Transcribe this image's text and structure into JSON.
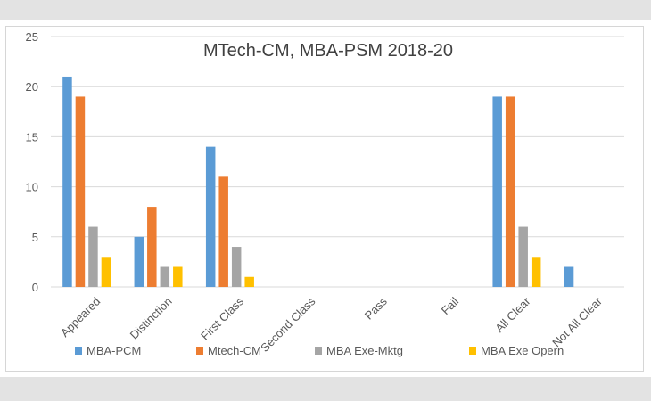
{
  "chart_data": {
    "type": "bar",
    "title": "MTech-CM, MBA-PSM 2018-20",
    "categories": [
      "Appeared",
      "Distinction",
      "First Class",
      "Second Class",
      "Pass",
      "Fail",
      "All Clear",
      "Not All Clear"
    ],
    "series": [
      {
        "name": "MBA-PCM",
        "color": "#5b9bd5",
        "values": [
          21,
          5,
          14,
          0,
          0,
          0,
          19,
          2
        ]
      },
      {
        "name": "Mtech-CM",
        "color": "#ed7d31",
        "values": [
          19,
          8,
          11,
          0,
          0,
          0,
          19,
          0
        ]
      },
      {
        "name": "MBA Exe-Mktg",
        "color": "#a5a5a5",
        "values": [
          6,
          2,
          4,
          0,
          0,
          0,
          6,
          0
        ]
      },
      {
        "name": "MBA Exe Opern",
        "color": "#ffc000",
        "values": [
          3,
          2,
          1,
          0,
          0,
          0,
          3,
          0
        ]
      }
    ],
    "ylim": [
      0,
      25
    ],
    "yticks": [
      0,
      5,
      10,
      15,
      20,
      25
    ],
    "grid": true,
    "legend": "bottom"
  }
}
